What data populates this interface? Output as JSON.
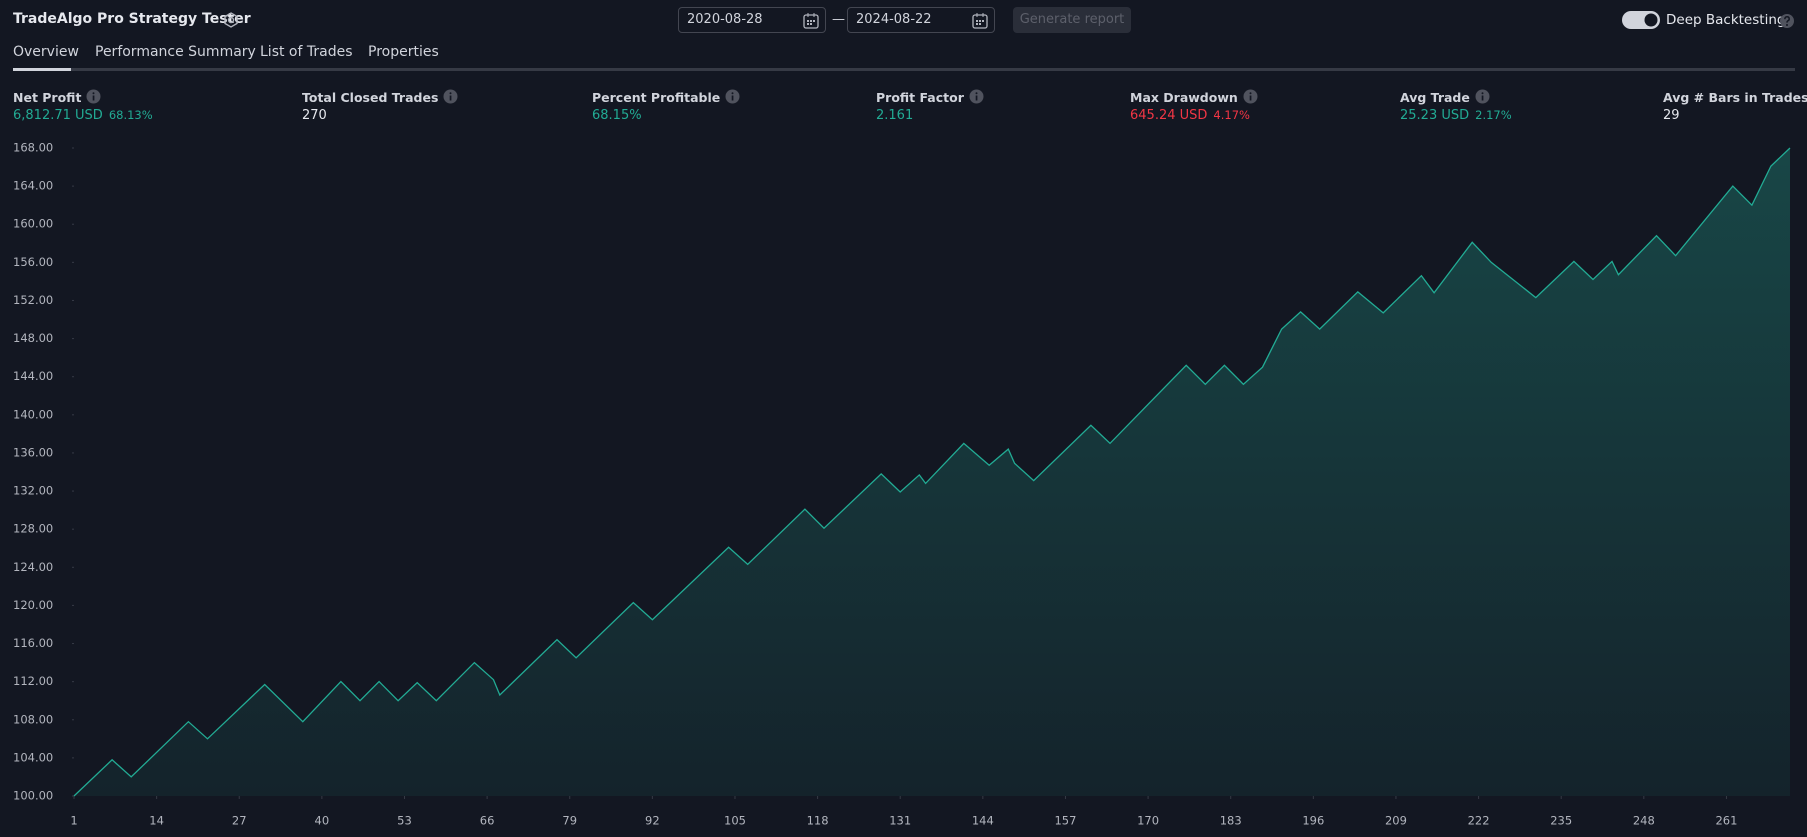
{
  "header": {
    "title": "TradeAlgo Pro Strategy Tester",
    "date_from": "2020-08-28",
    "date_separator": "—",
    "date_to": "2024-08-22",
    "generate_button": "Generate report",
    "toggle_label": "Deep Backtesting"
  },
  "tabs": [
    "Overview",
    "Performance Summary",
    "List of Trades",
    "Properties"
  ],
  "metrics": [
    {
      "label": "Net Profit",
      "value": "6,812.71 USD",
      "secondary": "68.13%",
      "color": "#22ab94"
    },
    {
      "label": "Total Closed Trades",
      "value": "270",
      "color": "#e6e8ee"
    },
    {
      "label": "Percent Profitable",
      "value": "68.15%",
      "color": "#22ab94"
    },
    {
      "label": "Profit Factor",
      "value": "2.161",
      "color": "#22ab94"
    },
    {
      "label": "Max Drawdown",
      "value": "645.24 USD",
      "secondary": "4.17%",
      "color": "#f23645"
    },
    {
      "label": "Avg Trade",
      "value": "25.23 USD",
      "secondary": "2.17%",
      "color": "#22ab94"
    },
    {
      "label": "Avg # Bars in Trades",
      "value": "29",
      "color": "#e6e8ee"
    }
  ],
  "chart_data": {
    "type": "area",
    "color": "#22ab94",
    "x": [
      1,
      7,
      10,
      19,
      22,
      31,
      37,
      43,
      46,
      49,
      52,
      55,
      58,
      64,
      67,
      68,
      77,
      80,
      89,
      92,
      104,
      107,
      116,
      119,
      128,
      131,
      134,
      135,
      141,
      145,
      148,
      149,
      152,
      161,
      164,
      176,
      179,
      182,
      185,
      188,
      191,
      194,
      197,
      203,
      207,
      213,
      215,
      221,
      224,
      231,
      237,
      240,
      243,
      244,
      250,
      253,
      262,
      265,
      268,
      271
    ],
    "values": [
      100,
      103.8,
      102,
      107.8,
      106,
      111.7,
      107.8,
      112,
      110,
      112,
      110,
      111.9,
      110,
      114,
      112.2,
      110.6,
      116.4,
      114.5,
      120.3,
      118.5,
      126.1,
      124.3,
      130.1,
      128.1,
      133.8,
      131.9,
      133.7,
      132.8,
      137,
      134.7,
      136.4,
      134.9,
      133.1,
      138.9,
      137,
      145.2,
      143.2,
      145.2,
      143.2,
      145,
      149,
      150.8,
      149,
      152.9,
      150.7,
      154.6,
      152.8,
      158.1,
      156,
      152.3,
      156.1,
      154.2,
      156.1,
      154.7,
      158.8,
      156.7,
      164,
      162,
      166.1,
      168
    ],
    "xlim": [
      1,
      271
    ],
    "xticks": [
      1,
      14,
      27,
      40,
      53,
      66,
      79,
      92,
      105,
      118,
      131,
      144,
      157,
      170,
      183,
      196,
      209,
      222,
      235,
      248,
      261
    ],
    "ylim": [
      100,
      168
    ],
    "yticks": [
      {
        "value": 100,
        "label": "100.00"
      },
      {
        "value": 104,
        "label": "104.00"
      },
      {
        "value": 108,
        "label": "108.00"
      },
      {
        "value": 112,
        "label": "112.00"
      },
      {
        "value": 116,
        "label": "116.00"
      },
      {
        "value": 120,
        "label": "120.00"
      },
      {
        "value": 124,
        "label": "124.00"
      },
      {
        "value": 128,
        "label": "128.00"
      },
      {
        "value": 132,
        "label": "132.00"
      },
      {
        "value": 136,
        "label": "136.00"
      },
      {
        "value": 140,
        "label": "140.00"
      },
      {
        "value": 144,
        "label": "144.00"
      },
      {
        "value": 148,
        "label": "148.00"
      },
      {
        "value": 152,
        "label": "152.00"
      },
      {
        "value": 156,
        "label": "156.00"
      },
      {
        "value": 160,
        "label": "160.00"
      },
      {
        "value": 164,
        "label": "164.00"
      },
      {
        "value": 168,
        "label": "168.00"
      }
    ]
  }
}
